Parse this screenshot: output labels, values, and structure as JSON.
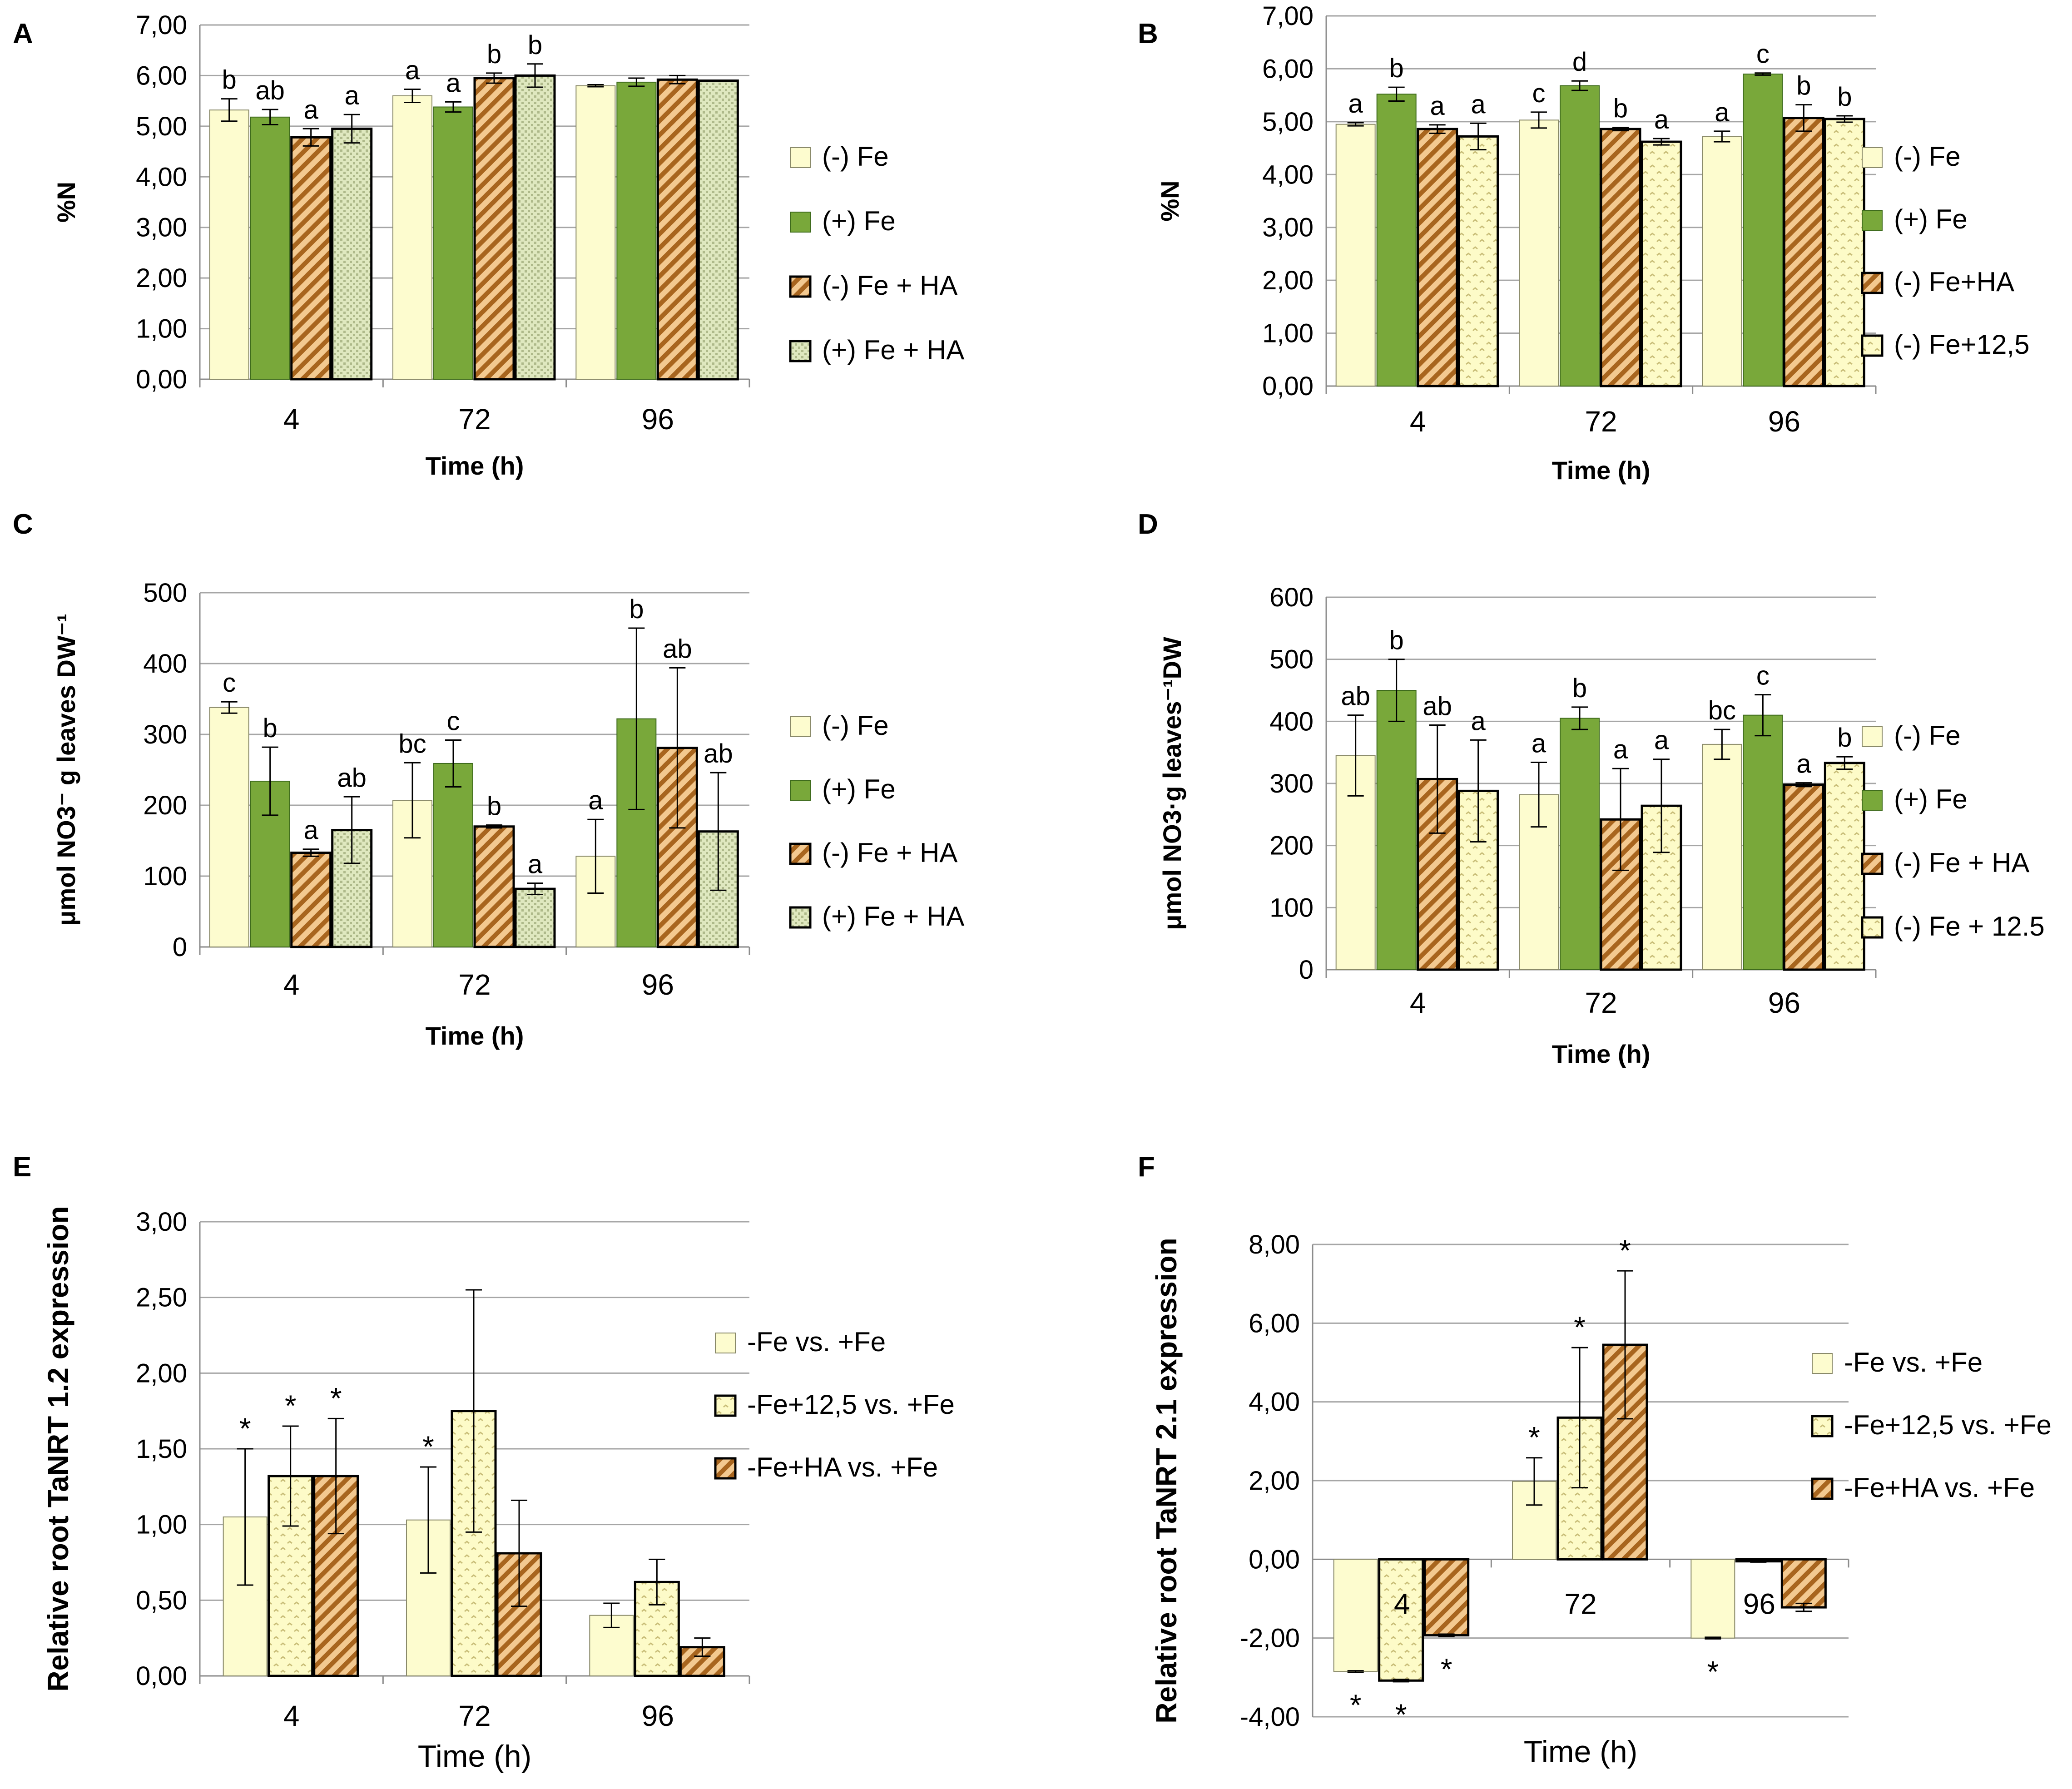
{
  "colors": {
    "minus_fe": "#fdfccf",
    "plus_fe": "#79a83a",
    "minus_fe_ha": "#e3a050",
    "plus_fe_ha": "#d7e2b0",
    "minus_fe_125": "#fdfbc8",
    "grid": "#a6a6a6"
  },
  "chart_data": [
    {
      "panel": "A",
      "type": "bar",
      "categories": [
        "4",
        "72",
        "96"
      ],
      "xlabel": "Time (h)",
      "ylabel": "%N",
      "ylim": [
        0,
        7
      ],
      "yticks": [
        "0,00",
        "1,00",
        "2,00",
        "3,00",
        "4,00",
        "5,00",
        "6,00",
        "7,00"
      ],
      "series": [
        {
          "name": "(-) Fe",
          "style": "minus_fe",
          "values": [
            5.32,
            5.6,
            5.8
          ],
          "errors": [
            0.22,
            0.13,
            0.02
          ],
          "labels": [
            "b",
            "a",
            ""
          ]
        },
        {
          "name": "(+) Fe",
          "style": "plus_fe",
          "values": [
            5.18,
            5.38,
            5.87
          ],
          "errors": [
            0.15,
            0.1,
            0.08
          ],
          "labels": [
            "ab",
            "a",
            ""
          ]
        },
        {
          "name": "(-) Fe + HA",
          "style": "minus_fe_ha",
          "values": [
            4.78,
            5.95,
            5.92
          ],
          "errors": [
            0.17,
            0.1,
            0.08
          ],
          "labels": [
            "a",
            "b",
            ""
          ]
        },
        {
          "name": "(+) Fe + HA",
          "style": "plus_fe_ha",
          "values": [
            4.95,
            6.0,
            5.9
          ],
          "errors": [
            0.28,
            0.23,
            0.0
          ],
          "labels": [
            "a",
            "b",
            ""
          ]
        }
      ]
    },
    {
      "panel": "B",
      "type": "bar",
      "categories": [
        "4",
        "72",
        "96"
      ],
      "xlabel": "Time (h)",
      "ylabel": "%N",
      "ylim": [
        0,
        7
      ],
      "yticks": [
        "0,00",
        "1,00",
        "2,00",
        "3,00",
        "4,00",
        "5,00",
        "6,00",
        "7,00"
      ],
      "series": [
        {
          "name": "(-) Fe",
          "style": "minus_fe",
          "values": [
            4.95,
            5.03,
            4.72
          ],
          "errors": [
            0.03,
            0.15,
            0.1
          ],
          "labels": [
            "a",
            "c",
            "a"
          ]
        },
        {
          "name": "(+) Fe",
          "style": "plus_fe",
          "values": [
            5.52,
            5.68,
            5.9
          ],
          "errors": [
            0.13,
            0.09,
            0.02
          ],
          "labels": [
            "b",
            "d",
            "c"
          ]
        },
        {
          "name": "(-) Fe+HA",
          "style": "minus_fe_ha",
          "values": [
            4.86,
            4.86,
            5.07
          ],
          "errors": [
            0.08,
            0.03,
            0.25
          ],
          "labels": [
            "a",
            "b",
            "b"
          ]
        },
        {
          "name": "(-) Fe+12,5",
          "style": "minus_fe_125",
          "values": [
            4.72,
            4.62,
            5.05
          ],
          "errors": [
            0.25,
            0.06,
            0.06
          ],
          "labels": [
            "a",
            "a",
            "b"
          ]
        }
      ]
    },
    {
      "panel": "C",
      "type": "bar",
      "categories": [
        "4",
        "72",
        "96"
      ],
      "xlabel": "Time (h)",
      "ylabel": "μmol NO3⁻ g leaves DW⁻¹",
      "ylim": [
        0,
        500
      ],
      "yticks": [
        "0",
        "100",
        "200",
        "300",
        "400",
        "500"
      ],
      "series": [
        {
          "name": "(-) Fe",
          "style": "minus_fe",
          "values": [
            338,
            207,
            128
          ],
          "errors": [
            8,
            53,
            52
          ],
          "labels": [
            "c",
            "bc",
            "a"
          ]
        },
        {
          "name": "(+) Fe",
          "style": "plus_fe",
          "values": [
            234,
            259,
            322
          ],
          "errors": [
            48,
            33,
            128
          ],
          "labels": [
            "b",
            "c",
            "b"
          ]
        },
        {
          "name": "(-) Fe + HA",
          "style": "minus_fe_ha",
          "values": [
            133,
            170,
            281
          ],
          "errors": [
            5,
            2,
            113
          ],
          "labels": [
            "a",
            "b",
            "ab"
          ]
        },
        {
          "name": "(+) Fe + HA",
          "style": "plus_fe_ha",
          "values": [
            165,
            82,
            163
          ],
          "errors": [
            47,
            8,
            83
          ],
          "labels": [
            "ab",
            "a",
            "ab"
          ]
        }
      ]
    },
    {
      "panel": "D",
      "type": "bar",
      "categories": [
        "4",
        "72",
        "96"
      ],
      "xlabel": "Time (h)",
      "ylabel": "μmol NO3·g leaves⁻¹DW",
      "ylim": [
        0,
        600
      ],
      "yticks": [
        "0",
        "100",
        "200",
        "300",
        "400",
        "500",
        "600"
      ],
      "series": [
        {
          "name": "(-) Fe",
          "style": "minus_fe",
          "values": [
            345,
            282,
            363
          ],
          "errors": [
            65,
            52,
            24
          ],
          "labels": [
            "ab",
            "a",
            "bc"
          ]
        },
        {
          "name": "(+) Fe",
          "style": "plus_fe",
          "values": [
            450,
            405,
            410
          ],
          "errors": [
            50,
            18,
            33
          ],
          "labels": [
            "b",
            "b",
            "c"
          ]
        },
        {
          "name": "(-) Fe + HA",
          "style": "minus_fe_ha",
          "values": [
            307,
            242,
            298
          ],
          "errors": [
            87,
            82,
            3
          ],
          "labels": [
            "ab",
            "a",
            "a"
          ]
        },
        {
          "name": "(-) Fe + 12.5",
          "style": "minus_fe_125",
          "values": [
            288,
            264,
            333
          ],
          "errors": [
            82,
            75,
            10
          ],
          "labels": [
            "a",
            "a",
            "b"
          ]
        }
      ]
    },
    {
      "panel": "E",
      "type": "bar",
      "categories": [
        "4",
        "72",
        "96"
      ],
      "xlabel": "Time (h)",
      "ylabel": "Relative root TaNRT 1.2 expression",
      "ylim": [
        0,
        3
      ],
      "yticks": [
        "0,00",
        "0,50",
        "1,00",
        "1,50",
        "2,00",
        "2,50",
        "3,00"
      ],
      "series": [
        {
          "name": "-Fe vs. +Fe",
          "style": "minus_fe",
          "values": [
            1.05,
            1.03,
            0.4
          ],
          "errors": [
            0.45,
            0.35,
            0.08
          ],
          "labels": [
            "*",
            "*",
            ""
          ]
        },
        {
          "name": "-Fe+12,5 vs. +Fe",
          "style": "minus_fe_125",
          "values": [
            1.32,
            1.75,
            0.62
          ],
          "errors": [
            0.33,
            0.8,
            0.15
          ],
          "labels": [
            "*",
            "",
            ""
          ]
        },
        {
          "name": "-Fe+HA vs. +Fe",
          "style": "minus_fe_ha",
          "values": [
            1.32,
            0.81,
            0.19
          ],
          "errors": [
            0.38,
            0.35,
            0.06
          ],
          "labels": [
            "*",
            "",
            ""
          ]
        }
      ]
    },
    {
      "panel": "F",
      "type": "bar",
      "categories": [
        "4",
        "72",
        "96"
      ],
      "xlabel": "Time (h)",
      "ylabel": "Relative root TaNRT 2.1 expression",
      "ylim": [
        -4,
        8
      ],
      "yticks": [
        "-4,00",
        "-2,00",
        "0,00",
        "2,00",
        "4,00",
        "6,00",
        "8,00"
      ],
      "series": [
        {
          "name": "-Fe vs. +Fe",
          "style": "minus_fe",
          "values": [
            -2.85,
            1.98,
            -2.0
          ],
          "errors": [
            0.02,
            0.6,
            0.02
          ],
          "labels": [
            "*",
            "*",
            "*"
          ]
        },
        {
          "name": "-Fe+12,5 vs. +Fe",
          "style": "minus_fe_125",
          "values": [
            -3.08,
            3.6,
            -0.05
          ],
          "errors": [
            0.03,
            1.78,
            0.02
          ],
          "labels": [
            "*",
            "*",
            ""
          ]
        },
        {
          "name": "-Fe+HA vs. +Fe",
          "style": "minus_fe_ha",
          "values": [
            -1.93,
            5.45,
            -1.22
          ],
          "errors": [
            0.03,
            1.88,
            0.1
          ],
          "labels": [
            "*",
            "*",
            ""
          ]
        }
      ]
    }
  ]
}
